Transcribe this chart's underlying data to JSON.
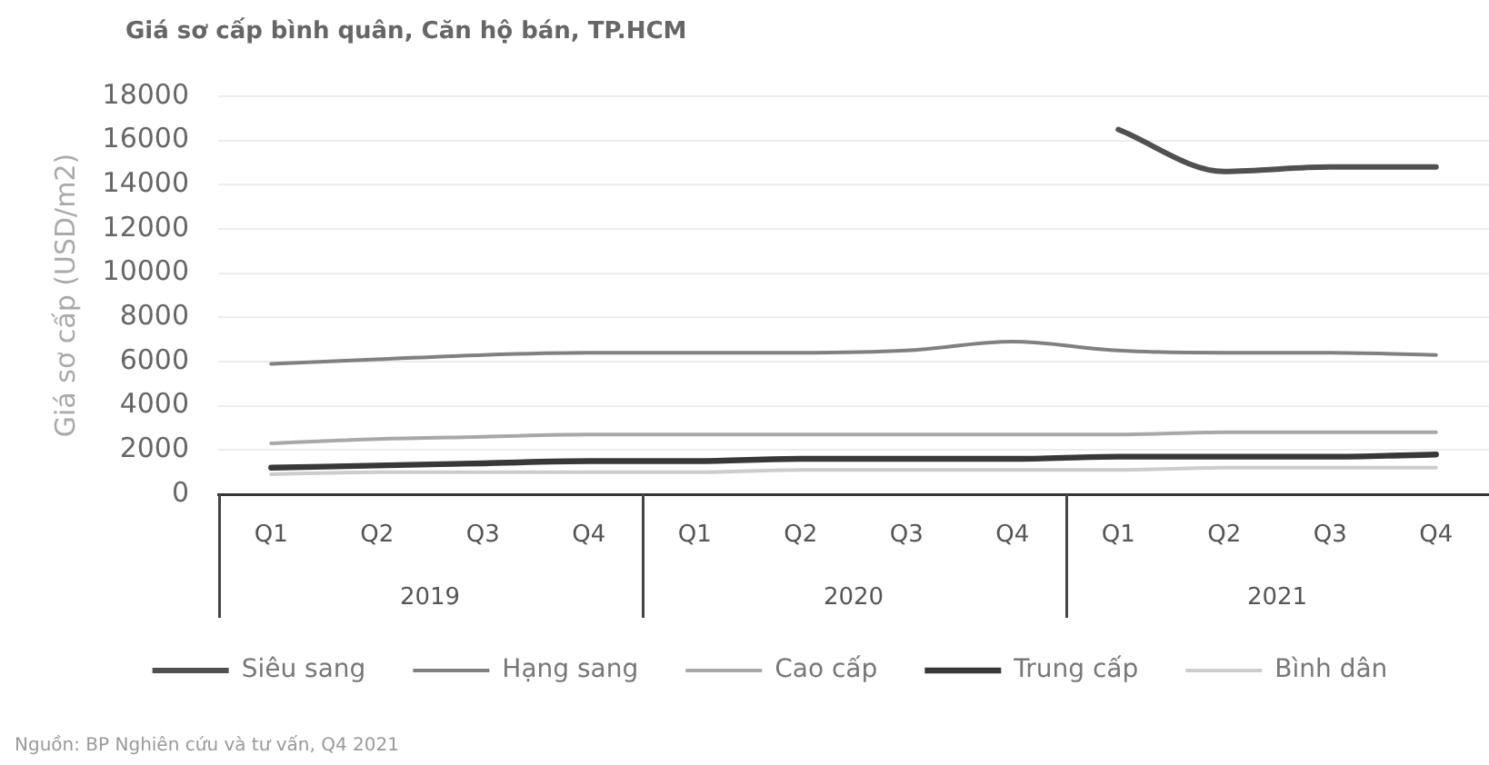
{
  "chart_data": {
    "type": "line",
    "title": "Giá sơ cấp bình quân, Căn hộ bán, TP.HCM",
    "ylabel": "Giá sơ cấp (USD/m2)",
    "categories": [
      "Q1",
      "Q2",
      "Q3",
      "Q4",
      "Q1",
      "Q2",
      "Q3",
      "Q4",
      "Q1",
      "Q2",
      "Q3",
      "Q4"
    ],
    "series": [
      {
        "name": "Siêu sang",
        "color": "#505050",
        "values": [
          null,
          null,
          null,
          null,
          null,
          null,
          null,
          null,
          16500,
          14600,
          14800,
          14800
        ]
      },
      {
        "name": "Hạng sang",
        "color": "#808080",
        "values": [
          5900,
          6100,
          6300,
          6400,
          6400,
          6400,
          6500,
          6900,
          6500,
          6400,
          6400,
          6300
        ]
      },
      {
        "name": "Cao cấp",
        "color": "#a8a8a8",
        "values": [
          2300,
          2500,
          2600,
          2700,
          2700,
          2700,
          2700,
          2700,
          2700,
          2800,
          2800,
          2800
        ]
      },
      {
        "name": "Trung cấp",
        "color": "#383838",
        "values": [
          1200,
          1300,
          1400,
          1500,
          1500,
          1600,
          1600,
          1600,
          1700,
          1700,
          1700,
          1800
        ]
      },
      {
        "name": "Bình dân",
        "color": "#cccccc",
        "values": [
          900,
          1000,
          1000,
          1000,
          1000,
          1100,
          1100,
          1100,
          1100,
          1200,
          1200,
          1200
        ]
      }
    ],
    "ylim": [
      0,
      18000
    ],
    "yticks": [
      0,
      2000,
      4000,
      6000,
      8000,
      10000,
      12000,
      14000,
      16000,
      18000
    ],
    "grid": "y",
    "legend": "bottom",
    "marker": "none",
    "annotations": [
      "2019",
      "2020",
      "2021",
      "Nguồn: BP Nghiên cứu và tư vấn, Q4 2021"
    ]
  }
}
